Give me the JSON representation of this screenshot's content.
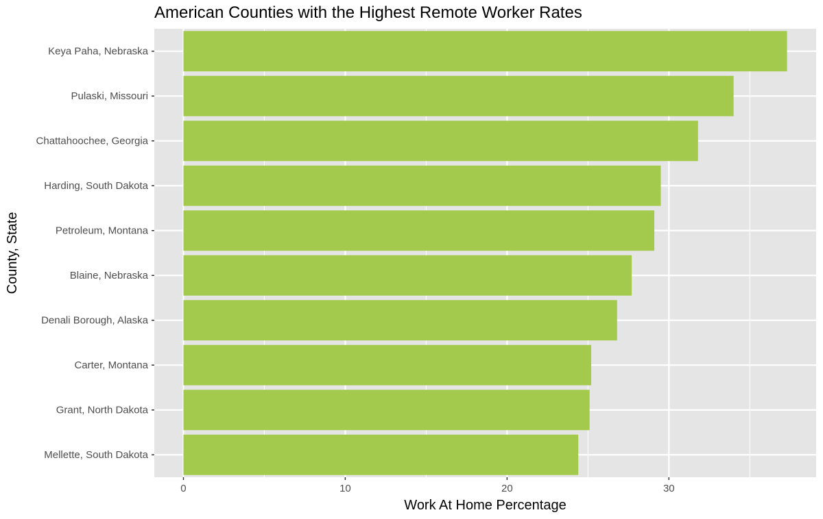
{
  "chart_data": {
    "type": "bar",
    "orientation": "horizontal",
    "title": "American Counties with the Highest Remote Worker Rates",
    "xlabel": "Work At Home Percentage",
    "ylabel": "County, State",
    "categories": [
      "Keya Paha, Nebraska",
      "Pulaski, Missouri",
      "Chattahoochee, Georgia",
      "Harding, South Dakota",
      "Petroleum, Montana",
      "Blaine, Nebraska",
      "Denali Borough, Alaska",
      "Carter, Montana",
      "Grant, North Dakota",
      "Mellette, South Dakota"
    ],
    "values": [
      37.3,
      34.0,
      31.8,
      29.5,
      29.1,
      27.7,
      26.8,
      25.2,
      25.1,
      24.4
    ],
    "xlim": [
      -1.8,
      39.1
    ],
    "xticks": [
      0,
      10,
      20,
      30
    ],
    "grid": true,
    "colors": {
      "bar": "#a3ca4c",
      "panel": "#e5e5e5",
      "grid": "#ffffff"
    }
  }
}
